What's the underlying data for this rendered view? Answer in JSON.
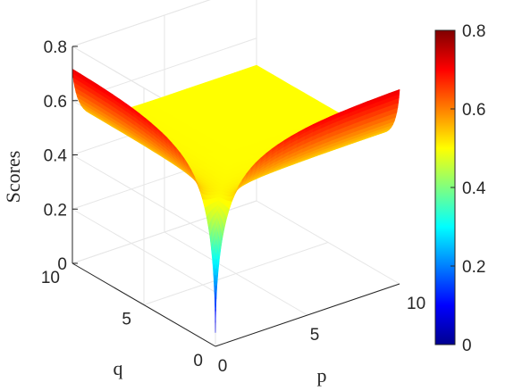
{
  "chart_data": {
    "type": "surface",
    "function_description_visible": "score(p,q) surface, minimum at p=0,q=0, rising to ~0.72 along the p=0 and q=0 edges, flat plateau ~0.5 elsewhere",
    "xlabel": "p",
    "ylabel": "q",
    "zlabel": "Scores",
    "xlim": [
      0,
      10
    ],
    "ylim": [
      0,
      10
    ],
    "zlim": [
      0,
      0.8
    ],
    "xticks": [
      "0",
      "5",
      "10"
    ],
    "yticks": [
      "0",
      "5",
      "10"
    ],
    "zticks": [
      "0",
      "0.2",
      "0.4",
      "0.6",
      "0.8"
    ],
    "plateau_value": 0.5,
    "edge_max_value": 0.72,
    "min_value": 0.05,
    "grid": true,
    "colormap": "jet",
    "colorbar": {
      "range": [
        0,
        0.8
      ],
      "ticks": [
        "0",
        "0.2",
        "0.4",
        "0.6",
        "0.8"
      ],
      "placement": "right"
    }
  }
}
